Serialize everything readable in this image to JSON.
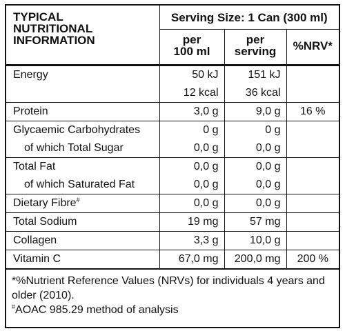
{
  "header": {
    "title_line1": "TYPICAL",
    "title_line2": "NUTRITIONAL",
    "title_line3": "INFORMATION",
    "serving_size": "Serving Size: 1 Can (300 ml)",
    "col_per100_line1": "per",
    "col_per100_line2": "100 ml",
    "col_perserving_line1": "per",
    "col_perserving_line2": "serving",
    "col_nrv": "%NRV*"
  },
  "rows": [
    {
      "name": "Energy",
      "per100": "50 kJ",
      "perserving": "151 kJ",
      "nrv": ""
    },
    {
      "name": "",
      "per100": "12 kcal",
      "perserving": "36 kcal",
      "nrv": ""
    },
    {
      "name": "Protein",
      "per100": "3,0 g",
      "perserving": "9,0 g",
      "nrv": "16 %"
    },
    {
      "name": "Glycaemic Carbohydrates",
      "per100": "0 g",
      "perserving": "0 g",
      "nrv": ""
    },
    {
      "name": "of which Total Sugar",
      "per100": "0,0 g",
      "perserving": "0,0 g",
      "nrv": ""
    },
    {
      "name": "Total Fat",
      "per100": "0,0 g",
      "perserving": "0,0 g",
      "nrv": ""
    },
    {
      "name": "of which Saturated Fat",
      "per100": "0,0 g",
      "perserving": "0,0 g",
      "nrv": ""
    },
    {
      "name": "Dietary Fibre",
      "name_sup": "#",
      "per100": "0,0 g",
      "perserving": "0,0 g",
      "nrv": ""
    },
    {
      "name": "Total Sodium",
      "per100": "19 mg",
      "perserving": "57 mg",
      "nrv": ""
    },
    {
      "name": "Collagen",
      "per100": "3,3 g",
      "perserving": "10,0 g",
      "nrv": ""
    },
    {
      "name": "Vitamin C",
      "per100": "67,0 mg",
      "perserving": "200,0 mg",
      "nrv": "200 %"
    }
  ],
  "footnotes": {
    "nrv_note": "*%Nutrient Reference Values (NRVs) for individuals 4 years and older (2010).",
    "aoac_mark": "#",
    "aoac_note": "AOAC 985.29 method of analysis"
  }
}
